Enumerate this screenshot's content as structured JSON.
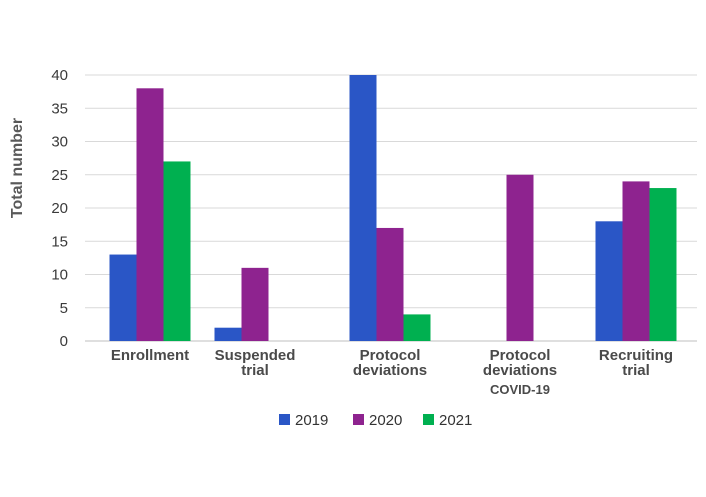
{
  "chart_data": {
    "type": "bar",
    "title": "",
    "xlabel": "",
    "ylabel": "Total number",
    "ylim": [
      0,
      40
    ],
    "yticks": [
      0,
      5,
      10,
      15,
      20,
      25,
      30,
      35,
      40
    ],
    "grid": true,
    "legend_position": "bottom",
    "categories": [
      [
        "Enrollment"
      ],
      [
        "Suspended",
        "trial"
      ],
      [
        "Protocol",
        "deviations"
      ],
      [
        "Protocol",
        "deviations",
        "COVID-19"
      ],
      [
        "Recruiting",
        "trial"
      ]
    ],
    "series": [
      {
        "name": "2019",
        "color": "#2A56C6",
        "values": [
          13,
          2,
          40,
          null,
          18
        ]
      },
      {
        "name": "2020",
        "color": "#8E238F",
        "values": [
          38,
          11,
          17,
          25,
          24
        ]
      },
      {
        "name": "2021",
        "color": "#00B050",
        "values": [
          27,
          null,
          4,
          null,
          23
        ]
      }
    ]
  }
}
